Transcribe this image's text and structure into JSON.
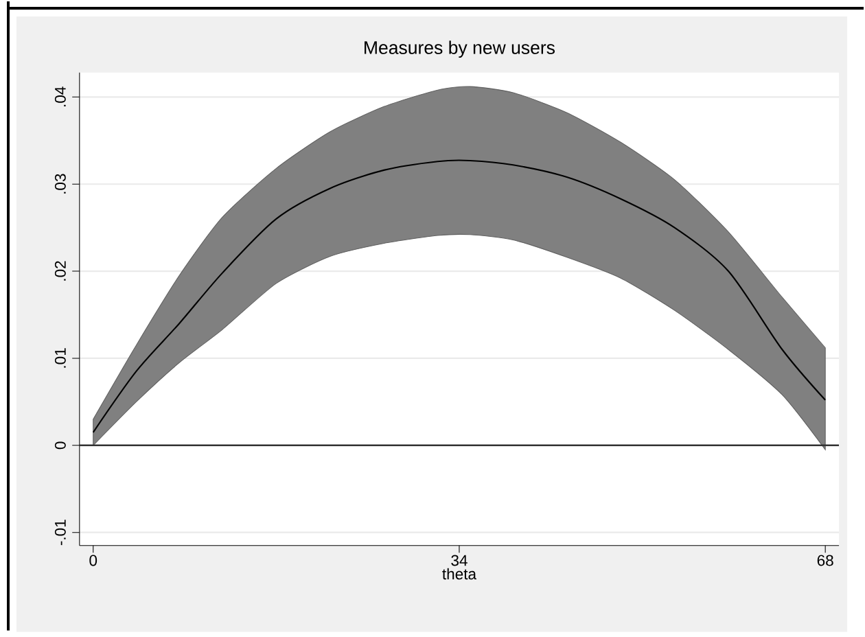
{
  "chart_data": {
    "type": "line",
    "title": "Measures by new users",
    "xlabel": "theta",
    "x": [
      0,
      4,
      8,
      12,
      17,
      22,
      27,
      32,
      35,
      39,
      44,
      49,
      54,
      59,
      64,
      68
    ],
    "series": [
      {
        "color": "#000000",
        "values": [
          0.0015,
          0.0085,
          0.014,
          0.0198,
          0.026,
          0.0295,
          0.0316,
          0.0326,
          0.0327,
          0.0322,
          0.0308,
          0.0283,
          0.025,
          0.02,
          0.011,
          0.0052
        ],
        "lower": [
          0.0,
          0.005,
          0.0095,
          0.0133,
          0.0186,
          0.0217,
          0.0232,
          0.0241,
          0.0242,
          0.0236,
          0.0216,
          0.0192,
          0.0155,
          0.011,
          0.0058,
          -0.0005
        ],
        "upper": [
          0.003,
          0.0115,
          0.0195,
          0.0262,
          0.0318,
          0.036,
          0.0389,
          0.0408,
          0.0412,
          0.0405,
          0.0382,
          0.0348,
          0.0305,
          0.0245,
          0.017,
          0.0112
        ]
      }
    ],
    "xlim": [
      -1.27,
      69.27
    ],
    "ylim": [
      -0.0115,
      0.0428
    ],
    "xticks": [
      0,
      34,
      68
    ],
    "yticks": [
      {
        "value": -0.01,
        "label": "-.01"
      },
      {
        "value": 0,
        "label": "0"
      },
      {
        "value": 0.01,
        "label": ".01"
      },
      {
        "value": 0.02,
        "label": ".02"
      },
      {
        "value": 0.03,
        "label": ".03"
      },
      {
        "value": 0.04,
        "label": ".04"
      }
    ],
    "ref_lines": [
      {
        "axis": "y",
        "value": 0,
        "color": "#333333"
      }
    ],
    "grid": "y"
  }
}
